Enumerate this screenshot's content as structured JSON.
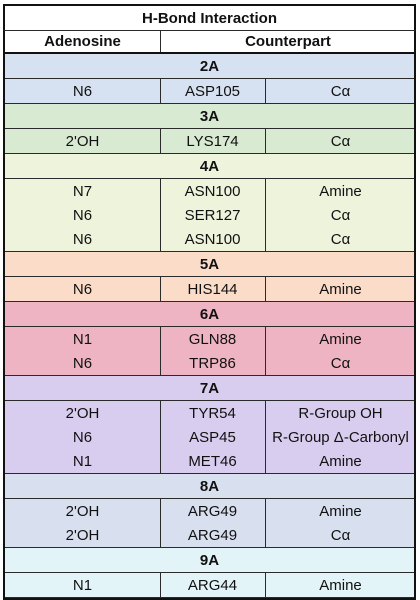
{
  "table": {
    "title": "H-Bond Interaction",
    "headers": [
      "Adenosine",
      "Counterpart"
    ],
    "sections": [
      {
        "label": "2A",
        "color": "#d6e2f1",
        "rows": [
          [
            "N6",
            "ASP105",
            "Cα"
          ]
        ]
      },
      {
        "label": "3A",
        "color": "#d9ead3",
        "rows": [
          [
            "2'OH",
            "LYS174",
            "Cα"
          ]
        ]
      },
      {
        "label": "4A",
        "color": "#eef3dc",
        "rows": [
          [
            "N7",
            "ASN100",
            "Amine"
          ],
          [
            "N6",
            "SER127",
            "Cα"
          ],
          [
            "N6",
            "ASN100",
            "Cα"
          ]
        ]
      },
      {
        "label": "5A",
        "color": "#fbdcc9",
        "rows": [
          [
            "N6",
            "HIS144",
            "Amine"
          ]
        ]
      },
      {
        "label": "6A",
        "color": "#eeb4c3",
        "rows": [
          [
            "N1",
            "GLN88",
            "Amine"
          ],
          [
            "N6",
            "TRP86",
            "Cα"
          ]
        ]
      },
      {
        "label": "7A",
        "color": "#d8cdee",
        "rows": [
          [
            "2'OH",
            "TYR54",
            "R-Group OH"
          ],
          [
            "N6",
            "ASP45",
            "R-Group Δ-Carbonyl"
          ],
          [
            "N1",
            "MET46",
            "Amine"
          ]
        ]
      },
      {
        "label": "8A",
        "color": "#d8e0f0",
        "rows": [
          [
            "2'OH",
            "ARG49",
            "Amine"
          ],
          [
            "2'OH",
            "ARG49",
            "Cα"
          ]
        ]
      },
      {
        "label": "9A",
        "color": "#e2f4f7",
        "rows": [
          [
            "N1",
            "ARG44",
            "Amine"
          ]
        ]
      }
    ]
  }
}
